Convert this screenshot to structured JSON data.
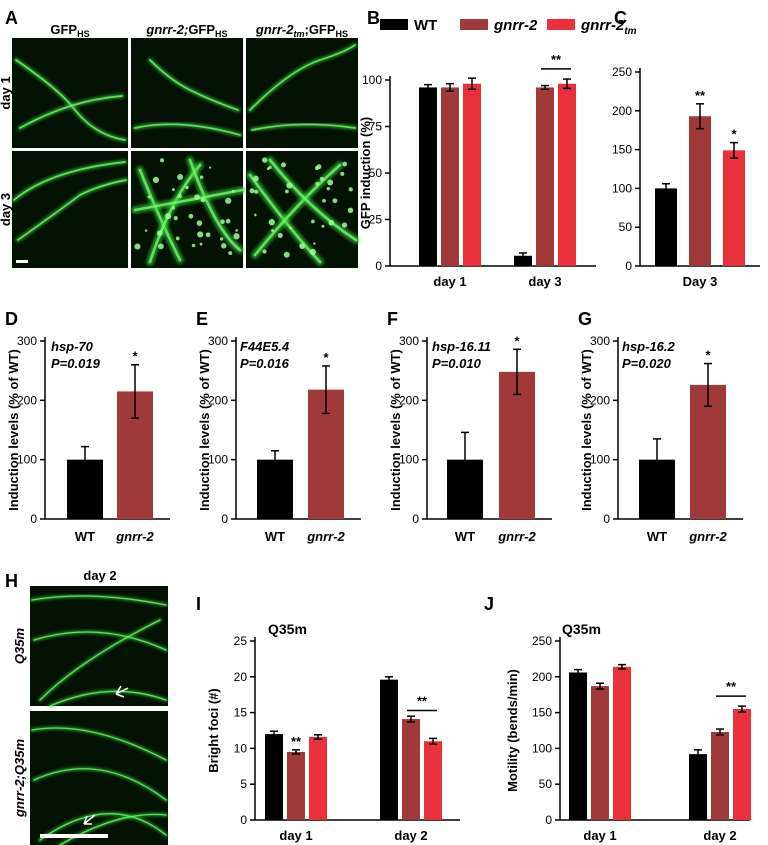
{
  "panel_letters": [
    "A",
    "B",
    "C",
    "D",
    "E",
    "F",
    "G",
    "H",
    "I",
    "J"
  ],
  "colors": {
    "WT": "#000000",
    "gnrr-2": "#A03A3A",
    "gnrr-2tm": "#E8313A",
    "gfp": "#33D633",
    "micro_bg": "#041204"
  },
  "micro_A": {
    "columns": [
      {
        "main": "GFP",
        "sub": "HS",
        "italic": false
      },
      {
        "main": "gnrr-2;",
        "sub": "",
        "italic": true,
        "tail": "GFP",
        "tailsub": "HS"
      },
      {
        "main": "gnrr-2",
        "sub": "tm",
        "italic": true,
        "tail": ";GFP",
        "tailsub": "HS"
      }
    ],
    "rows": [
      "day 1",
      "day 3"
    ]
  },
  "micro_H": {
    "title": "day 2",
    "rows": [
      "Q35m",
      "gnrr-2;Q35m"
    ]
  },
  "legend": [
    {
      "key": "WT",
      "label": "WT",
      "italic": false
    },
    {
      "key": "gnrr-2",
      "label": "gnrr-2",
      "italic": true
    },
    {
      "key": "gnrr-2tm",
      "label": "gnrr-2",
      "sub": "tm",
      "italic": true
    }
  ],
  "chart_data": [
    {
      "id": "B",
      "type": "bar",
      "ylabel": "GFP induction (%)",
      "categories": [
        "day 1",
        "day 3"
      ],
      "ylim": [
        0,
        100
      ],
      "yticks": [
        0,
        25,
        50,
        75,
        100
      ],
      "series": [
        {
          "key": "WT",
          "values": [
            96,
            5.5
          ],
          "errors": [
            1.5,
            1.5
          ]
        },
        {
          "key": "gnrr-2",
          "values": [
            96,
            96
          ],
          "errors": [
            2,
            1
          ]
        },
        {
          "key": "gnrr-2tm",
          "values": [
            98,
            98
          ],
          "errors": [
            3,
            2.5
          ]
        }
      ],
      "significance": [
        {
          "text": "**",
          "category": 1,
          "from": "gnrr-2",
          "to": "gnrr-2tm",
          "y": 106
        }
      ]
    },
    {
      "id": "C",
      "type": "bar",
      "ylabel": "",
      "categories": [
        "Day 3"
      ],
      "ylim": [
        0,
        250
      ],
      "yticks": [
        0,
        50,
        100,
        150,
        200,
        250
      ],
      "series": [
        {
          "key": "WT",
          "values": [
            100
          ],
          "errors": [
            6
          ]
        },
        {
          "key": "gnrr-2",
          "values": [
            193
          ],
          "errors": [
            16
          ]
        },
        {
          "key": "gnrr-2tm",
          "values": [
            149
          ],
          "errors": [
            10
          ]
        }
      ],
      "stars": [
        "",
        "**",
        "*"
      ]
    },
    {
      "id": "D",
      "type": "bar",
      "gene": "hsp-70",
      "pvalue": "P=0.019",
      "ylabel": "Induction levels (% of WT)",
      "categories": [
        "WT",
        "gnrr-2"
      ],
      "ylim": [
        0,
        300
      ],
      "yticks": [
        0,
        100,
        200,
        300
      ],
      "values": [
        100,
        215
      ],
      "errors": [
        22,
        45
      ],
      "stars": [
        "",
        "*"
      ]
    },
    {
      "id": "E",
      "type": "bar",
      "gene": "F44E5.4",
      "pvalue": "P=0.016",
      "ylabel": "Induction levels (% of WT)",
      "categories": [
        "WT",
        "gnrr-2"
      ],
      "ylim": [
        0,
        300
      ],
      "yticks": [
        0,
        100,
        200,
        300
      ],
      "values": [
        100,
        218
      ],
      "errors": [
        15,
        40
      ],
      "stars": [
        "",
        "*"
      ]
    },
    {
      "id": "F",
      "type": "bar",
      "gene": "hsp-16.11",
      "pvalue": "P=0.010",
      "ylabel": "Induction levels (% of WT)",
      "categories": [
        "WT",
        "gnrr-2"
      ],
      "ylim": [
        0,
        300
      ],
      "yticks": [
        0,
        100,
        200,
        300
      ],
      "values": [
        100,
        248
      ],
      "errors": [
        46,
        38
      ],
      "stars": [
        "",
        "*"
      ]
    },
    {
      "id": "G",
      "type": "bar",
      "gene": "hsp-16.2",
      "pvalue": "P=0.020",
      "ylabel": "Induction levels (% of WT)",
      "categories": [
        "WT",
        "gnrr-2"
      ],
      "ylim": [
        0,
        300
      ],
      "yticks": [
        0,
        100,
        200,
        300
      ],
      "values": [
        100,
        226
      ],
      "errors": [
        35,
        36
      ],
      "stars": [
        "",
        "*"
      ]
    },
    {
      "id": "I",
      "type": "bar",
      "title": "Q35m",
      "ylabel": "Bright foci (#)",
      "categories": [
        "day 1",
        "day 2"
      ],
      "ylim": [
        0,
        25
      ],
      "yticks": [
        0,
        5,
        10,
        15,
        20,
        25
      ],
      "series": [
        {
          "key": "WT",
          "values": [
            12.0,
            19.6
          ],
          "errors": [
            0.4,
            0.4
          ]
        },
        {
          "key": "gnrr-2",
          "values": [
            9.5,
            14.1
          ],
          "errors": [
            0.3,
            0.4
          ]
        },
        {
          "key": "gnrr-2tm",
          "values": [
            11.6,
            11.0
          ],
          "errors": [
            0.3,
            0.4
          ]
        }
      ],
      "stars": [
        [
          "",
          "**",
          ""
        ],
        [
          "",
          "",
          ""
        ]
      ],
      "significance": [
        {
          "text": "**",
          "category": 1,
          "from": "gnrr-2",
          "to": "gnrr-2tm",
          "y": 15.3
        }
      ]
    },
    {
      "id": "J",
      "type": "bar",
      "title": "Q35m",
      "ylabel": "Motility (bends/min)",
      "categories": [
        "day 1",
        "day 2"
      ],
      "ylim": [
        0,
        250
      ],
      "yticks": [
        0,
        50,
        100,
        150,
        200,
        250
      ],
      "series": [
        {
          "key": "WT",
          "values": [
            206,
            92
          ],
          "errors": [
            4,
            6
          ]
        },
        {
          "key": "gnrr-2",
          "values": [
            187,
            123
          ],
          "errors": [
            4,
            4
          ]
        },
        {
          "key": "gnrr-2tm",
          "values": [
            214,
            155
          ],
          "errors": [
            3,
            4
          ]
        }
      ],
      "significance": [
        {
          "text": "**",
          "category": 1,
          "from": "gnrr-2",
          "to": "gnrr-2tm",
          "y": 173
        }
      ]
    }
  ]
}
